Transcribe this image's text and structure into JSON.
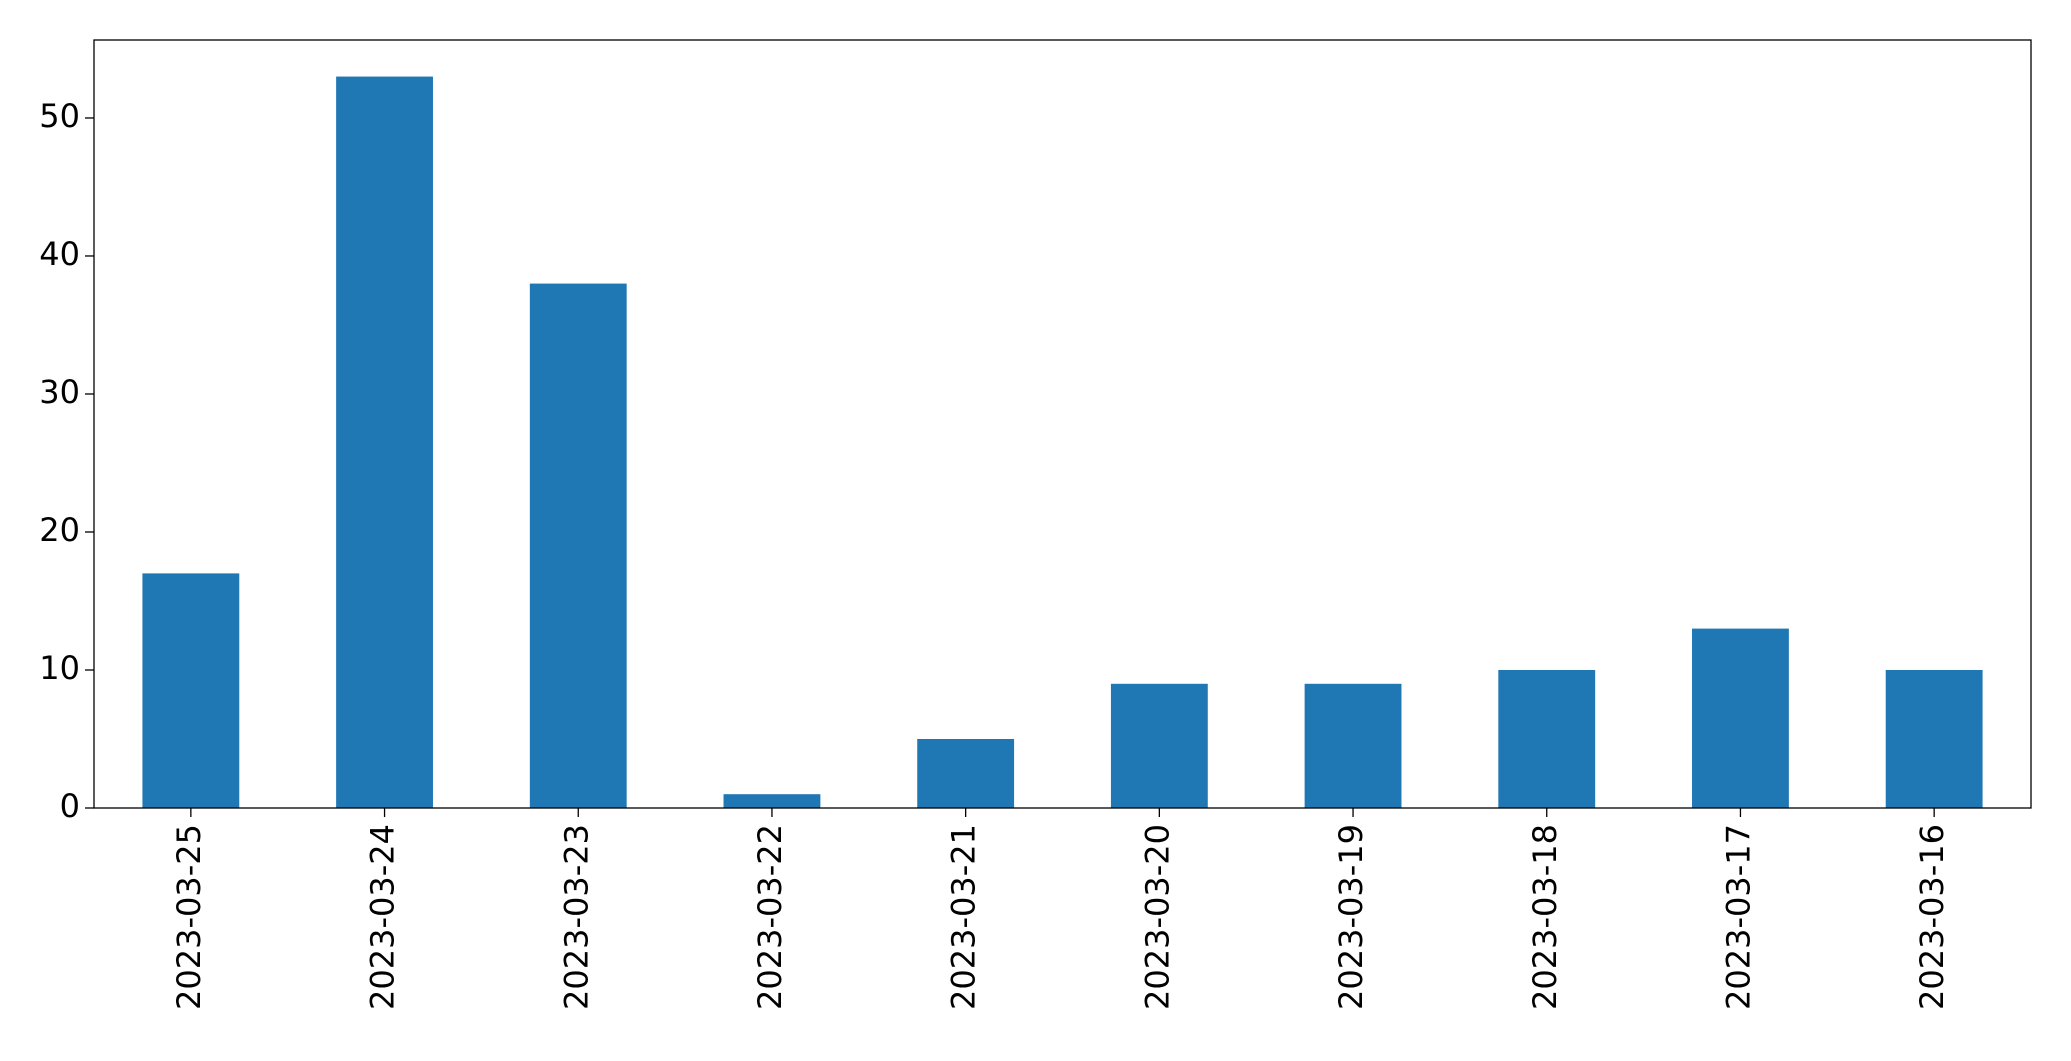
{
  "chart_data": {
    "type": "bar",
    "categories": [
      "2023-03-25",
      "2023-03-24",
      "2023-03-23",
      "2023-03-22",
      "2023-03-21",
      "2023-03-20",
      "2023-03-19",
      "2023-03-18",
      "2023-03-17",
      "2023-03-16"
    ],
    "values": [
      17,
      53,
      38,
      1,
      5,
      9,
      9,
      10,
      13,
      10
    ],
    "color": "#1f77b4",
    "ylim": [
      0,
      55.65
    ],
    "yticks": [
      0,
      10,
      20,
      30,
      40,
      50
    ],
    "grid": false
  }
}
